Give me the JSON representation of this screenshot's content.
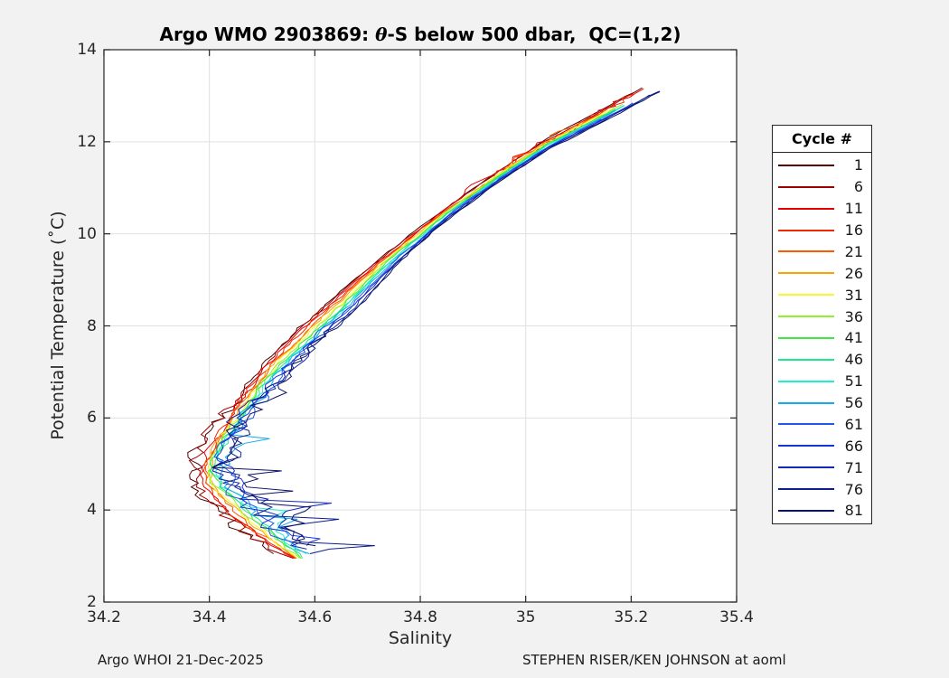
{
  "title": {
    "prefix": "Argo WMO 2903869: ",
    "theta": "θ",
    "suffix": "-S below 500 dbar,  QC=(1,2)"
  },
  "axes": {
    "xlabel": "Salinity",
    "ylabel": "Potential Temperature (˚C)",
    "xlim": [
      34.2,
      35.4
    ],
    "ylim": [
      2,
      14
    ],
    "xticks": [
      34.2,
      34.4,
      34.6,
      34.8,
      35,
      35.2,
      35.4
    ],
    "xtick_labels": [
      "34.2",
      "34.4",
      "34.6",
      "34.8",
      "35",
      "35.2",
      "35.4"
    ],
    "yticks": [
      2,
      4,
      6,
      8,
      10,
      12,
      14
    ],
    "ytick_labels": [
      "2",
      "4",
      "6",
      "8",
      "10",
      "12",
      "14"
    ]
  },
  "legend": {
    "title": "Cycle #",
    "entries": [
      {
        "label": "1",
        "color": "#4d0000"
      },
      {
        "label": "6",
        "color": "#9e0000"
      },
      {
        "label": "11",
        "color": "#e80000"
      },
      {
        "label": "16",
        "color": "#f02800"
      },
      {
        "label": "21",
        "color": "#ff5a00"
      },
      {
        "label": "26",
        "color": "#ffa000"
      },
      {
        "label": "31",
        "color": "#f8f82e"
      },
      {
        "label": "36",
        "color": "#8ff22e"
      },
      {
        "label": "41",
        "color": "#3ee83e"
      },
      {
        "label": "46",
        "color": "#1ee88c"
      },
      {
        "label": "51",
        "color": "#1ef0d2"
      },
      {
        "label": "56",
        "color": "#14aaf0"
      },
      {
        "label": "61",
        "color": "#1e5ae8"
      },
      {
        "label": "66",
        "color": "#1432e0"
      },
      {
        "label": "71",
        "color": "#1228b4"
      },
      {
        "label": "76",
        "color": "#0e1e8c"
      },
      {
        "label": "81",
        "color": "#0c1264"
      }
    ]
  },
  "footer": {
    "left": "Argo WHOI 21-Dec-2025",
    "right": "STEPHEN RISER/KEN JOHNSON at aoml"
  },
  "style": {
    "figure_bg": "#f2f2f2",
    "plot_bg": "#ffffff",
    "frame_color": "#262626",
    "grid_color": "#e0e0e0",
    "text_color": "#262626"
  },
  "chart_data": {
    "type": "line",
    "title": "Argo WMO 2903869: θ-S below 500 dbar, QC=(1,2)",
    "xlabel": "Salinity",
    "ylabel": "Potential Temperature (°C)",
    "xlim": [
      34.2,
      35.4
    ],
    "ylim": [
      2,
      14
    ],
    "grid": true,
    "legend_title": "Cycle #",
    "legend_position": "right-outside",
    "colormap": "jet-reversed: cycle 1 = dark red, cycle 81 = dark navy",
    "base_curve": {
      "comment": "theta-S profile of earliest cycle; all cycles share this shape, later cycles are saltier at depth",
      "salinity": [
        35.25,
        35.13,
        35.03,
        34.95,
        34.86,
        34.79,
        34.71,
        34.63,
        34.57,
        34.51,
        34.46,
        34.43,
        34.405,
        34.385,
        34.375,
        34.385,
        34.41,
        34.44,
        34.48,
        34.52,
        34.55
      ],
      "theta": [
        13.3,
        12.55,
        11.95,
        11.35,
        10.65,
        10.05,
        9.35,
        8.55,
        7.95,
        7.25,
        6.55,
        6.0,
        5.55,
        5.15,
        4.85,
        4.5,
        4.15,
        3.8,
        3.45,
        3.15,
        2.95
      ]
    },
    "salinity_spread": {
      "comment": "salinity offset of cycle 81 relative to cycle 1 as a function of temperature",
      "theta": [
        2.9,
        3.4,
        4.0,
        4.6,
        5.5,
        6.5,
        7.5,
        8.5,
        9.5,
        10.5,
        11.5,
        13.3
      ],
      "delta_s": [
        0.05,
        0.085,
        0.085,
        0.065,
        0.05,
        0.055,
        0.07,
        0.065,
        0.045,
        0.028,
        0.02,
        0.018
      ]
    },
    "noise_note": "later (blue/navy) cycles show noisy zigzag excursions up to S=34.7 between theta 3-6; earliest (dark red) cycle swings left to S=34.37 near theta 5",
    "series": [
      {
        "cycle": 1,
        "color": "#4d0000",
        "offset_fraction": 0.0
      },
      {
        "cycle": 6,
        "color": "#9e0000",
        "offset_fraction": 0.0625
      },
      {
        "cycle": 11,
        "color": "#e80000",
        "offset_fraction": 0.125
      },
      {
        "cycle": 16,
        "color": "#f02800",
        "offset_fraction": 0.1875
      },
      {
        "cycle": 21,
        "color": "#ff5a00",
        "offset_fraction": 0.25
      },
      {
        "cycle": 26,
        "color": "#ffa000",
        "offset_fraction": 0.3125
      },
      {
        "cycle": 31,
        "color": "#f8f82e",
        "offset_fraction": 0.375
      },
      {
        "cycle": 36,
        "color": "#8ff22e",
        "offset_fraction": 0.4375
      },
      {
        "cycle": 41,
        "color": "#3ee83e",
        "offset_fraction": 0.5
      },
      {
        "cycle": 46,
        "color": "#1ee88c",
        "offset_fraction": 0.5625
      },
      {
        "cycle": 51,
        "color": "#1ef0d2",
        "offset_fraction": 0.625
      },
      {
        "cycle": 56,
        "color": "#14aaf0",
        "offset_fraction": 0.6875
      },
      {
        "cycle": 61,
        "color": "#1e5ae8",
        "offset_fraction": 0.75
      },
      {
        "cycle": 66,
        "color": "#1432e0",
        "offset_fraction": 0.8125
      },
      {
        "cycle": 71,
        "color": "#1228b4",
        "offset_fraction": 0.875
      },
      {
        "cycle": 76,
        "color": "#0e1e8c",
        "offset_fraction": 0.9375
      },
      {
        "cycle": 81,
        "color": "#0c1264",
        "offset_fraction": 1.0
      }
    ]
  }
}
